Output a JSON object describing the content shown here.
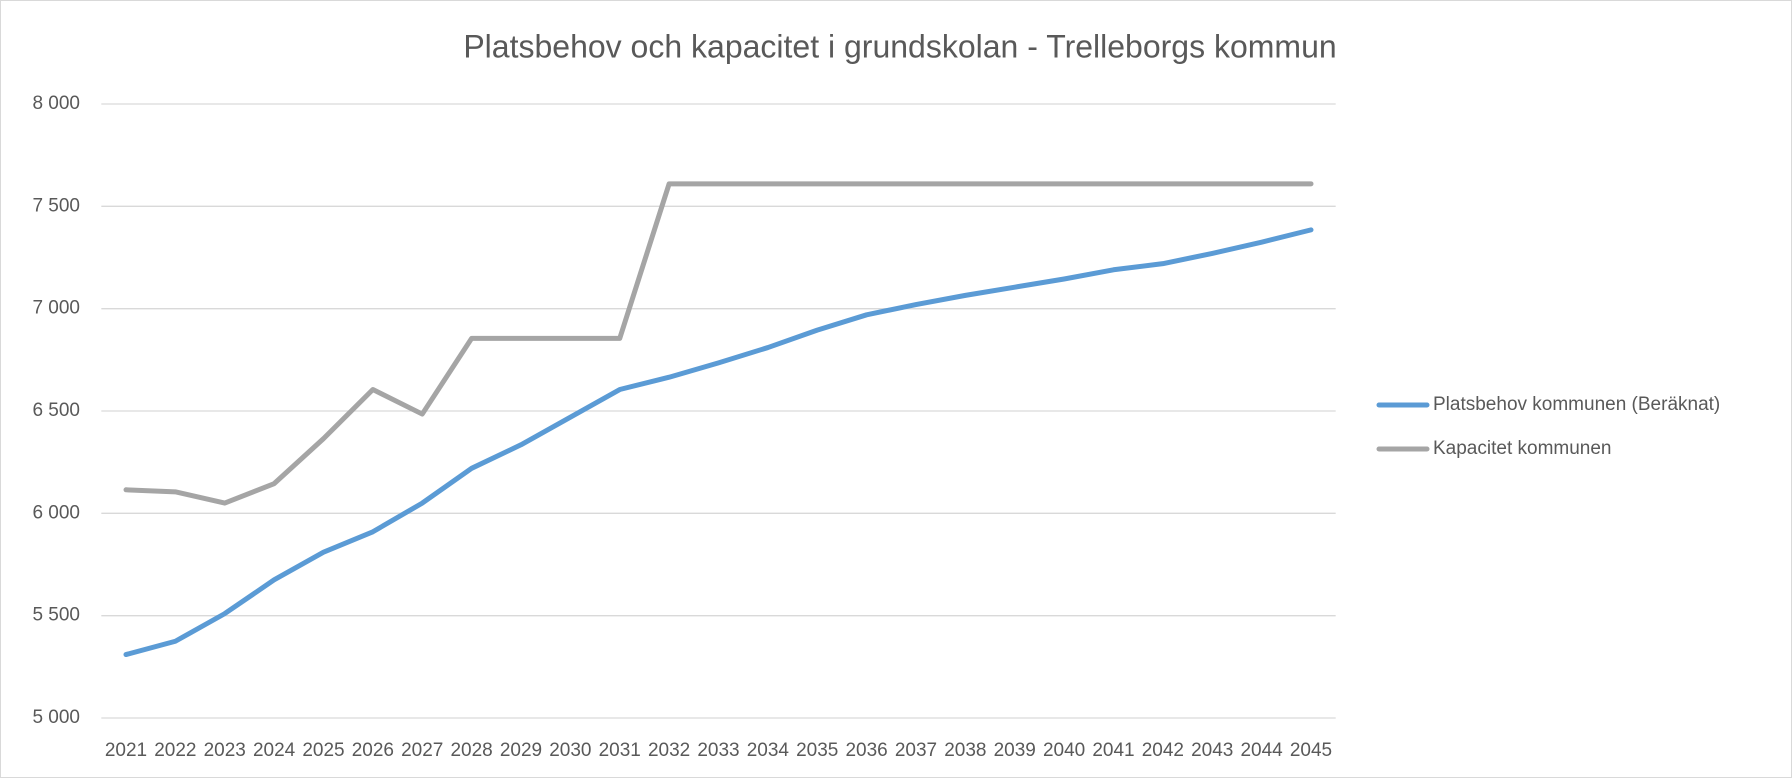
{
  "chart_data": {
    "type": "line",
    "title": "Platsbehov och kapacitet i grundskolan - Trelleborgs kommun",
    "categories": [
      "2021",
      "2022",
      "2023",
      "2024",
      "2025",
      "2026",
      "2027",
      "2028",
      "2029",
      "2030",
      "2031",
      "2032",
      "2033",
      "2034",
      "2035",
      "2036",
      "2037",
      "2038",
      "2039",
      "2040",
      "2041",
      "2042",
      "2043",
      "2044",
      "2045"
    ],
    "series": [
      {
        "name": "Platsbehov kommunen (Beräknat)",
        "color": "#5b9bd5",
        "values": [
          5310,
          5375,
          5510,
          5675,
          5810,
          5910,
          6050,
          6220,
          6335,
          6470,
          6605,
          6665,
          6735,
          6810,
          6895,
          6970,
          7020,
          7065,
          7105,
          7145,
          7190,
          7220,
          7270,
          7325,
          7385
        ]
      },
      {
        "name": "Kapacitet kommunen",
        "color": "#a5a5a5",
        "values": [
          6115,
          6105,
          6050,
          6145,
          6365,
          6605,
          6485,
          6855,
          6855,
          6855,
          6855,
          7610,
          7610,
          7610,
          7610,
          7610,
          7610,
          7610,
          7610,
          7610,
          7610,
          7610,
          7610,
          7610,
          7610
        ]
      }
    ],
    "ylim": [
      5000,
      8000
    ],
    "yticks": [
      {
        "value": 5000,
        "label": "5 000"
      },
      {
        "value": 5500,
        "label": "5 500"
      },
      {
        "value": 6000,
        "label": "6 000"
      },
      {
        "value": 6500,
        "label": "6 500"
      },
      {
        "value": 7000,
        "label": "7 000"
      },
      {
        "value": 7500,
        "label": "7 500"
      },
      {
        "value": 8000,
        "label": "8 000"
      }
    ],
    "grid": true,
    "legend": "right"
  }
}
